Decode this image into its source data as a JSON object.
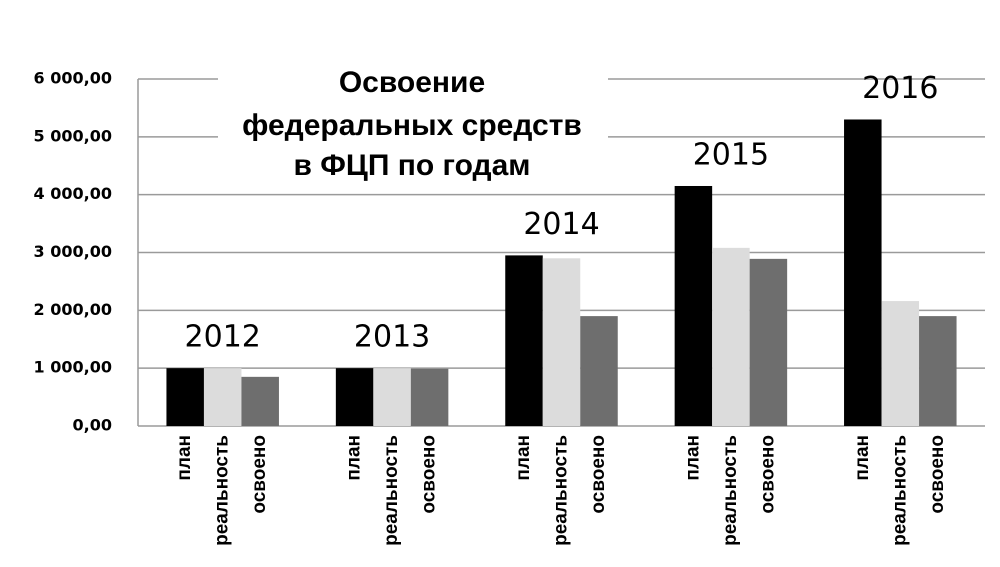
{
  "chart_data": {
    "type": "bar",
    "title": [
      "Освоение",
      "федеральных средств",
      "в ФЦП по годам"
    ],
    "categories": [
      "2012",
      "2013",
      "2014",
      "2015",
      "2016"
    ],
    "series": [
      {
        "name": "план",
        "color": "#000000",
        "values": [
          1000,
          1000,
          2950,
          4150,
          5300
        ]
      },
      {
        "name": "реальность",
        "color": "#dcdcdc",
        "values": [
          1000,
          1000,
          2900,
          3080,
          2160
        ]
      },
      {
        "name": "освоено",
        "color": "#6e6e6e",
        "values": [
          850,
          990,
          1900,
          2890,
          1900
        ]
      }
    ],
    "ylim": [
      0,
      6000
    ],
    "yticks": [
      {
        "value": 0,
        "label": "0,00"
      },
      {
        "value": 1000,
        "label": "1 000,00"
      },
      {
        "value": 2000,
        "label": "2 000,00"
      },
      {
        "value": 3000,
        "label": "3 000,00"
      },
      {
        "value": 4000,
        "label": "4 000,00"
      },
      {
        "value": 5000,
        "label": "5 000,00"
      },
      {
        "value": 6000,
        "label": "6 000,00"
      }
    ],
    "grid": true
  }
}
